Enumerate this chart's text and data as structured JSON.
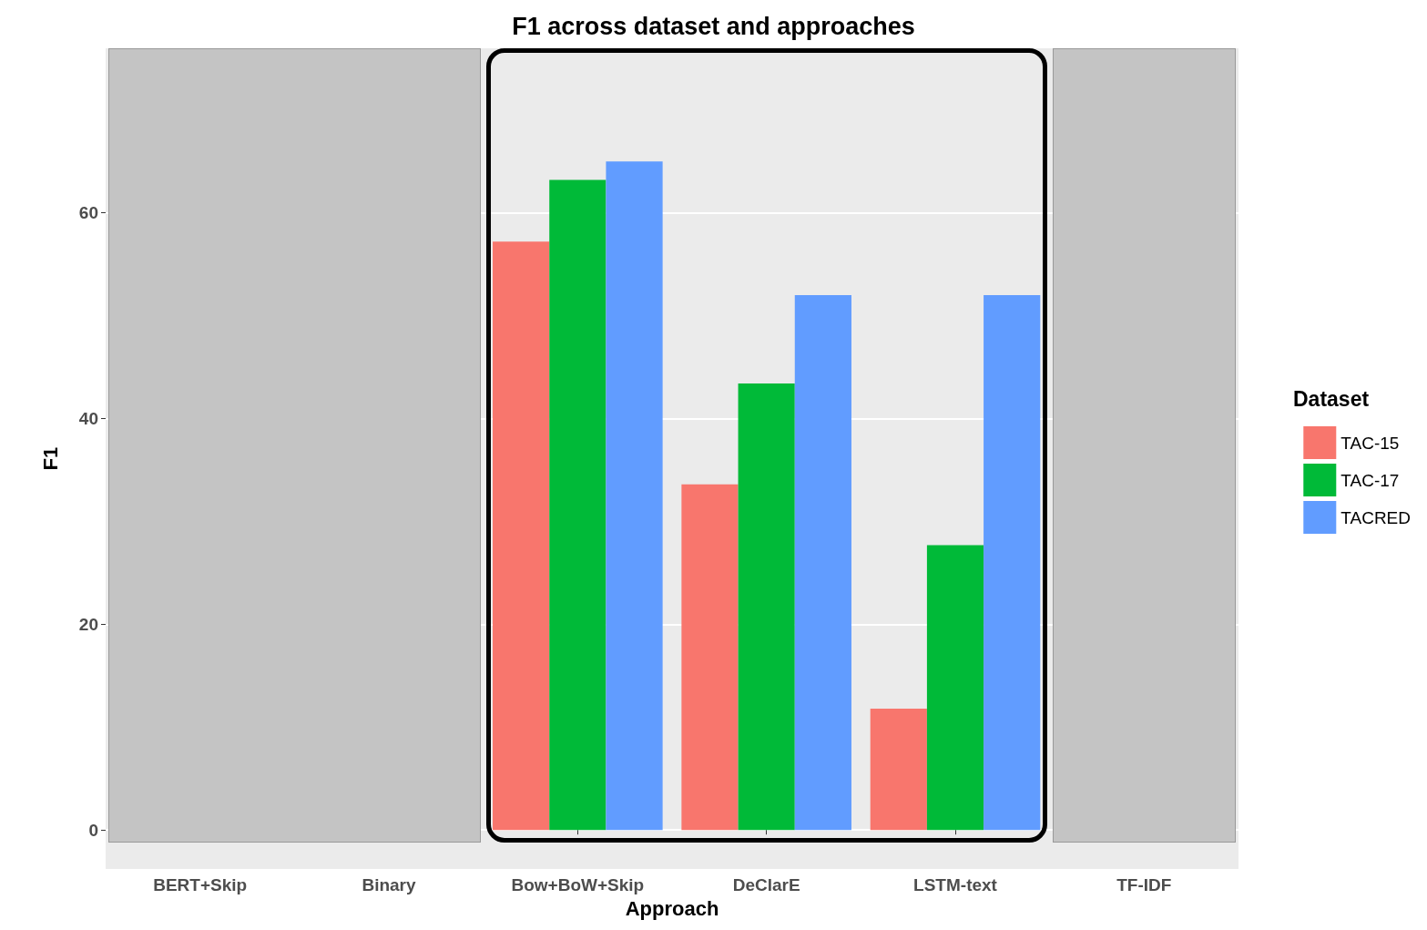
{
  "chart_data": {
    "type": "bar",
    "title": "F1 across dataset and approaches",
    "xlabel": "Approach",
    "ylabel": "F1",
    "legend_title": "Dataset",
    "categories": [
      "BERT+Skip",
      "Binary",
      "Bow+BoW+Skip",
      "DeClarE",
      "LSTM-text",
      "TF-IDF"
    ],
    "series": [
      {
        "name": "TAC-15",
        "color": "#f8766d",
        "values": [
          null,
          null,
          57.2,
          33.6,
          11.8,
          null
        ]
      },
      {
        "name": "TAC-17",
        "color": "#00ba38",
        "values": [
          null,
          null,
          63.2,
          43.4,
          27.7,
          null
        ]
      },
      {
        "name": "TACRED",
        "color": "#619cff",
        "values": [
          null,
          null,
          65.0,
          52.0,
          52.0,
          null
        ]
      }
    ],
    "ylim": [
      -3.8,
      76
    ],
    "yticks": [
      0,
      20,
      40,
      60
    ],
    "grid": true,
    "legend": "right"
  }
}
